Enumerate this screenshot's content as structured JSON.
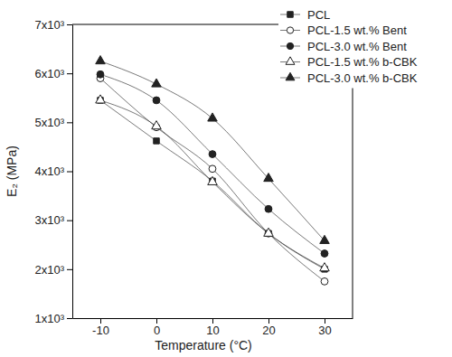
{
  "chart_data": {
    "type": "line",
    "x_label": "Temperature (°C)",
    "y_label": "E₂ (MPa)",
    "x": [
      -10,
      0,
      10,
      20,
      30
    ],
    "xlim": [
      -15,
      35
    ],
    "xticks": [
      -10,
      0,
      10,
      20,
      30
    ],
    "ylim": [
      1000,
      7000
    ],
    "yticks": [
      {
        "value": 1000,
        "label": "1x10³"
      },
      {
        "value": 2000,
        "label": "2x10³"
      },
      {
        "value": 3000,
        "label": "3x10³"
      },
      {
        "value": 4000,
        "label": "4x10³"
      },
      {
        "value": 5000,
        "label": "5x10³"
      },
      {
        "value": 6000,
        "label": "6x10³"
      },
      {
        "value": 7000,
        "label": "7x10³"
      }
    ],
    "grid": false,
    "legend": "upper right",
    "series": [
      {
        "name": "PCL",
        "color": "#222222",
        "marker": "square",
        "values": [
          5450,
          4620,
          3800,
          2730,
          2000
        ]
      },
      {
        "name": "PCL-1.5 wt.% Bent",
        "color": "#222222",
        "marker": "open-circle",
        "values": [
          5900,
          4900,
          4050,
          2730,
          1750
        ]
      },
      {
        "name": "PCL-3.0 wt.% Bent",
        "color": "#222222",
        "marker": "circle",
        "values": [
          5980,
          5450,
          4350,
          3230,
          2320
        ]
      },
      {
        "name": "PCL-1.5 wt.% b-CBK",
        "color": "#222222",
        "marker": "open-triangle",
        "values": [
          5450,
          4920,
          3780,
          2730,
          2020
        ]
      },
      {
        "name": "PCL-3.0 wt.% b-CBK",
        "color": "#222222",
        "marker": "triangle",
        "values": [
          6250,
          5780,
          5080,
          3850,
          2580
        ]
      }
    ]
  }
}
